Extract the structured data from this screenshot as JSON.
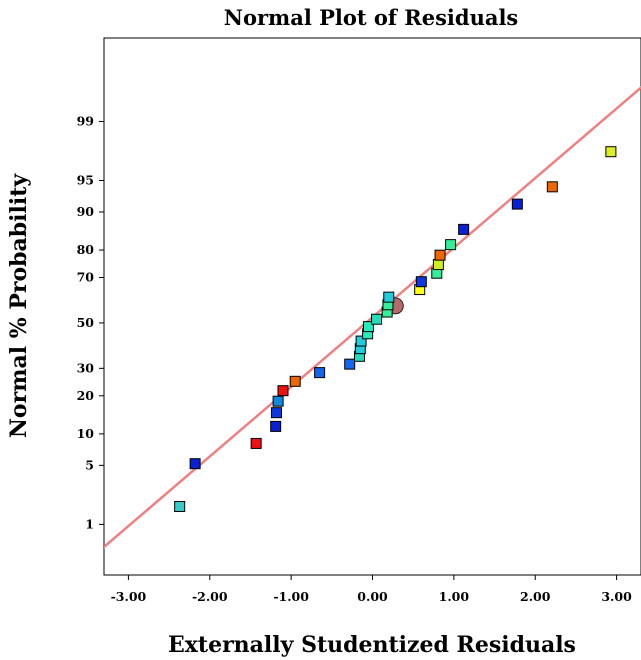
{
  "chart_data": {
    "type": "scatter",
    "title": "Normal Plot of Residuals",
    "xlabel": "Externally Studentized Residuals",
    "ylabel": "Normal % Probability",
    "xlim": [
      -3.3,
      3.3
    ],
    "ylim": [
      0.18,
      99.95
    ],
    "y_scale": "normal-probability",
    "grid": false,
    "x_ticks": [
      -3,
      -2,
      -1,
      0,
      1,
      2,
      3
    ],
    "x_tick_labels": [
      "-3.00",
      "-2.00",
      "-1.00",
      "0.00",
      "1.00",
      "2.00",
      "3.00"
    ],
    "y_ticks": [
      1,
      5,
      10,
      20,
      30,
      50,
      70,
      80,
      90,
      95,
      99
    ],
    "y_tick_labels": [
      "1",
      "5",
      "10",
      "20",
      "30",
      "50",
      "70",
      "80",
      "90",
      "95",
      "99"
    ],
    "reference_line": {
      "color": "#f08080",
      "points": [
        [
          -3.5,
          0.3
        ],
        [
          3.5,
          99.8
        ]
      ]
    },
    "marker_center": {
      "x": 0.28,
      "y": 57.8,
      "color": "#b86a6a"
    },
    "points": [
      {
        "x": -2.37,
        "y": 1.7,
        "color": "#33cccc"
      },
      {
        "x": -2.18,
        "y": 5.2,
        "color": "#0a1fd8"
      },
      {
        "x": -1.43,
        "y": 8.2,
        "color": "#ee1111"
      },
      {
        "x": -1.19,
        "y": 11.6,
        "color": "#0a1fd8"
      },
      {
        "x": -1.18,
        "y": 15.0,
        "color": "#0b38e0"
      },
      {
        "x": -1.16,
        "y": 18.3,
        "color": "#1188dd"
      },
      {
        "x": -1.1,
        "y": 21.7,
        "color": "#ee1111"
      },
      {
        "x": -0.95,
        "y": 25.0,
        "color": "#ee6600"
      },
      {
        "x": -0.65,
        "y": 28.3,
        "color": "#1166ee"
      },
      {
        "x": -0.28,
        "y": 31.7,
        "color": "#1166ee"
      },
      {
        "x": -0.16,
        "y": 35.0,
        "color": "#22ddbb"
      },
      {
        "x": -0.15,
        "y": 38.3,
        "color": "#22ccdd"
      },
      {
        "x": -0.14,
        "y": 41.7,
        "color": "#22ccdd"
      },
      {
        "x": -0.06,
        "y": 45.0,
        "color": "#22eebb"
      },
      {
        "x": -0.05,
        "y": 48.3,
        "color": "#22eebb"
      },
      {
        "x": 0.05,
        "y": 51.7,
        "color": "#22ddbb"
      },
      {
        "x": 0.18,
        "y": 55.0,
        "color": "#33ee99"
      },
      {
        "x": 0.19,
        "y": 58.3,
        "color": "#33ee99"
      },
      {
        "x": 0.2,
        "y": 61.7,
        "color": "#22ccdd"
      },
      {
        "x": 0.58,
        "y": 65.0,
        "color": "#ffff11"
      },
      {
        "x": 0.6,
        "y": 68.3,
        "color": "#0b38e0"
      },
      {
        "x": 0.79,
        "y": 71.7,
        "color": "#33ee99"
      },
      {
        "x": 0.81,
        "y": 75.0,
        "color": "#ccee22"
      },
      {
        "x": 0.83,
        "y": 78.3,
        "color": "#ee6600"
      },
      {
        "x": 0.96,
        "y": 81.7,
        "color": "#33ee99"
      },
      {
        "x": 1.12,
        "y": 86.0,
        "color": "#0a1fd8"
      },
      {
        "x": 1.78,
        "y": 91.5,
        "color": "#0a1fd8"
      },
      {
        "x": 2.21,
        "y": 94.2,
        "color": "#ee6600"
      },
      {
        "x": 2.93,
        "y": 97.6,
        "color": "#ddee22"
      }
    ]
  }
}
